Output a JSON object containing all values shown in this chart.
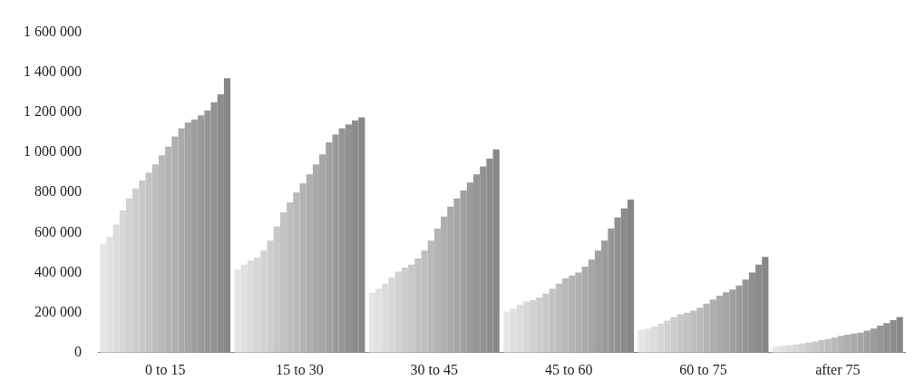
{
  "chart_data": {
    "type": "bar",
    "categories": [
      "0 to 15",
      "15 to 30",
      "30 to 45",
      "45 to 60",
      "60 to 75",
      "after 75"
    ],
    "ylim": [
      0,
      1600000
    ],
    "yticks": [
      0,
      {
        "value": 200000,
        "label": "200 000"
      },
      {
        "value": 400000,
        "label": "400 000"
      },
      {
        "value": 600000,
        "label": "600 000"
      },
      {
        "value": 800000,
        "label": "800 000"
      },
      {
        "value": 1000000,
        "label": "1 000 000"
      },
      {
        "value": 1200000,
        "label": "1 200 000"
      },
      {
        "value": 1400000,
        "label": "1 400 000"
      },
      {
        "value": 1600000,
        "label": "1 600 000"
      }
    ],
    "grid": false,
    "legend": false,
    "series": [
      {
        "color": "#e6e6e6",
        "values": [
          540000,
          415000,
          300000,
          205000,
          115000,
          30000
        ]
      },
      {
        "color": "#e1e1e1",
        "values": [
          580000,
          440000,
          320000,
          220000,
          120000,
          33000
        ]
      },
      {
        "color": "#dcdcdc",
        "values": [
          640000,
          460000,
          345000,
          240000,
          130000,
          37000
        ]
      },
      {
        "color": "#d7d7d7",
        "values": [
          710000,
          475000,
          375000,
          255000,
          145000,
          41000
        ]
      },
      {
        "color": "#d2d2d2",
        "values": [
          770000,
          510000,
          405000,
          262000,
          160000,
          45000
        ]
      },
      {
        "color": "#cdcdcd",
        "values": [
          820000,
          560000,
          425000,
          275000,
          178000,
          50000
        ]
      },
      {
        "color": "#c8c8c8",
        "values": [
          860000,
          630000,
          440000,
          295000,
          192000,
          55000
        ]
      },
      {
        "color": "#c3c3c3",
        "values": [
          900000,
          700000,
          470000,
          320000,
          200000,
          62000
        ]
      },
      {
        "color": "#bebebe",
        "values": [
          940000,
          750000,
          510000,
          345000,
          210000,
          68000
        ]
      },
      {
        "color": "#b9b9b9",
        "values": [
          985000,
          800000,
          560000,
          370000,
          225000,
          75000
        ]
      },
      {
        "color": "#b4b4b4",
        "values": [
          1030000,
          845000,
          620000,
          385000,
          245000,
          84000
        ]
      },
      {
        "color": "#afafaf",
        "values": [
          1080000,
          890000,
          680000,
          400000,
          265000,
          90000
        ]
      },
      {
        "color": "#aaaaaa",
        "values": [
          1120000,
          940000,
          730000,
          430000,
          285000,
          95000
        ]
      },
      {
        "color": "#a5a5a5",
        "values": [
          1150000,
          990000,
          770000,
          465000,
          302000,
          100000
        ]
      },
      {
        "color": "#a0a0a0",
        "values": [
          1165000,
          1050000,
          810000,
          510000,
          315000,
          110000
        ]
      },
      {
        "color": "#9b9b9b",
        "values": [
          1185000,
          1090000,
          850000,
          560000,
          335000,
          120000
        ]
      },
      {
        "color": "#969696",
        "values": [
          1210000,
          1120000,
          890000,
          620000,
          365000,
          135000
        ]
      },
      {
        "color": "#919191",
        "values": [
          1250000,
          1140000,
          930000,
          675000,
          400000,
          148000
        ]
      },
      {
        "color": "#8c8c8c",
        "values": [
          1290000,
          1160000,
          970000,
          720000,
          440000,
          162000
        ]
      },
      {
        "color": "#878787",
        "values": [
          1370000,
          1175000,
          1015000,
          765000,
          478000,
          178000
        ]
      }
    ]
  }
}
